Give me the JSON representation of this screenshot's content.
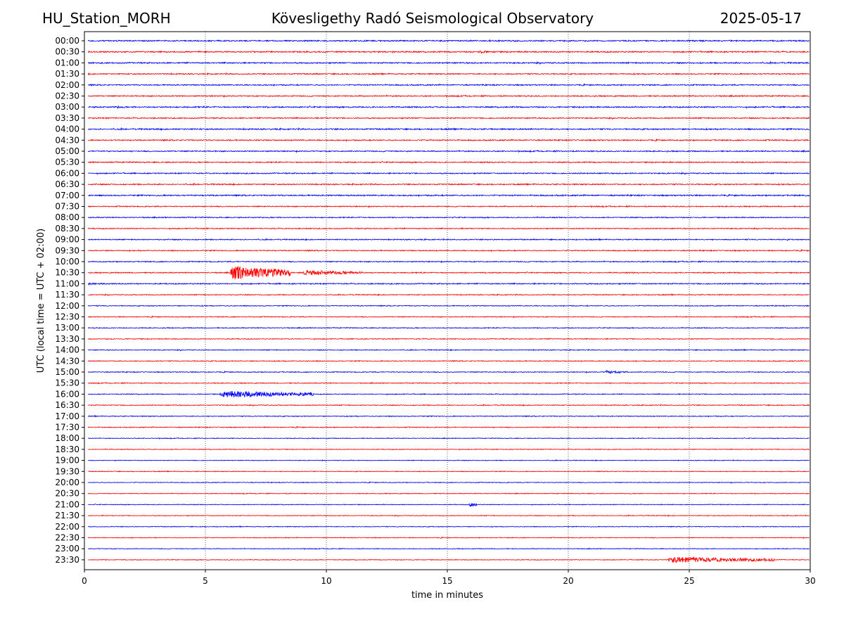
{
  "header": {
    "station": "HU_Station_MORH",
    "title": "Kövesligethy Radó Seismological Observatory",
    "date": "2025-05-17"
  },
  "chart_data": {
    "type": "line",
    "title": "Kövesligethy Radó Seismological Observatory",
    "xlabel": "time in minutes",
    "ylabel": "UTC (local time = UTC + 02:00)",
    "xlim": [
      0,
      30
    ],
    "xticks": [
      0,
      5,
      10,
      15,
      20,
      25,
      30
    ],
    "grid": "vertical dotted lines at each x tick",
    "colors": [
      "#0000ff",
      "#ff0000"
    ],
    "rows": [
      {
        "label": "00:00",
        "noise": 0.9,
        "events": []
      },
      {
        "label": "00:30",
        "noise": 0.9,
        "events": [
          {
            "start": 16.2,
            "end": 17.5,
            "amp": 2.0
          }
        ]
      },
      {
        "label": "01:00",
        "noise": 0.9,
        "events": []
      },
      {
        "label": "01:30",
        "noise": 0.8,
        "events": []
      },
      {
        "label": "02:00",
        "noise": 0.8,
        "events": []
      },
      {
        "label": "02:30",
        "noise": 0.8,
        "events": []
      },
      {
        "label": "03:00",
        "noise": 0.9,
        "events": [
          {
            "start": 1.3,
            "end": 1.8,
            "amp": 1.8
          }
        ]
      },
      {
        "label": "03:30",
        "noise": 0.8,
        "events": []
      },
      {
        "label": "04:00",
        "noise": 0.9,
        "events": []
      },
      {
        "label": "04:30",
        "noise": 0.8,
        "events": []
      },
      {
        "label": "05:00",
        "noise": 0.8,
        "events": []
      },
      {
        "label": "05:30",
        "noise": 0.8,
        "events": []
      },
      {
        "label": "06:00",
        "noise": 0.8,
        "events": []
      },
      {
        "label": "06:30",
        "noise": 0.8,
        "events": []
      },
      {
        "label": "07:00",
        "noise": 0.9,
        "events": []
      },
      {
        "label": "07:30",
        "noise": 0.7,
        "events": []
      },
      {
        "label": "08:00",
        "noise": 0.7,
        "events": []
      },
      {
        "label": "08:30",
        "noise": 0.7,
        "events": []
      },
      {
        "label": "09:00",
        "noise": 0.7,
        "events": []
      },
      {
        "label": "09:30",
        "noise": 0.7,
        "events": []
      },
      {
        "label": "10:00",
        "noise": 0.7,
        "events": []
      },
      {
        "label": "10:30",
        "noise": 0.7,
        "events": [
          {
            "start": 6.0,
            "end": 8.5,
            "amp": 11.0
          },
          {
            "start": 9.0,
            "end": 11.5,
            "amp": 4.0
          }
        ]
      },
      {
        "label": "11:00",
        "noise": 0.8,
        "events": [
          {
            "start": 0.1,
            "end": 1.2,
            "amp": 1.6
          }
        ]
      },
      {
        "label": "11:30",
        "noise": 0.6,
        "events": []
      },
      {
        "label": "12:00",
        "noise": 0.6,
        "events": []
      },
      {
        "label": "12:30",
        "noise": 0.6,
        "events": []
      },
      {
        "label": "13:00",
        "noise": 0.6,
        "events": []
      },
      {
        "label": "13:30",
        "noise": 0.6,
        "events": []
      },
      {
        "label": "14:00",
        "noise": 0.6,
        "events": []
      },
      {
        "label": "14:30",
        "noise": 0.6,
        "events": []
      },
      {
        "label": "15:00",
        "noise": 0.6,
        "events": [
          {
            "start": 21.5,
            "end": 22.5,
            "amp": 2.2
          }
        ]
      },
      {
        "label": "15:30",
        "noise": 0.6,
        "events": []
      },
      {
        "label": "16:00",
        "noise": 0.6,
        "events": [
          {
            "start": 5.6,
            "end": 9.5,
            "amp": 5.5
          }
        ]
      },
      {
        "label": "16:30",
        "noise": 0.6,
        "events": []
      },
      {
        "label": "17:00",
        "noise": 0.6,
        "events": []
      },
      {
        "label": "17:30",
        "noise": 0.6,
        "events": []
      },
      {
        "label": "18:00",
        "noise": 0.5,
        "events": []
      },
      {
        "label": "18:30",
        "noise": 0.5,
        "events": []
      },
      {
        "label": "19:00",
        "noise": 0.5,
        "events": []
      },
      {
        "label": "19:30",
        "noise": 0.5,
        "events": []
      },
      {
        "label": "20:00",
        "noise": 0.5,
        "events": []
      },
      {
        "label": "20:30",
        "noise": 0.5,
        "events": []
      },
      {
        "label": "21:00",
        "noise": 0.5,
        "events": [
          {
            "start": 15.9,
            "end": 16.2,
            "amp": 4.0
          }
        ]
      },
      {
        "label": "21:30",
        "noise": 0.5,
        "events": []
      },
      {
        "label": "22:00",
        "noise": 0.5,
        "events": []
      },
      {
        "label": "22:30",
        "noise": 0.5,
        "events": []
      },
      {
        "label": "23:00",
        "noise": 0.5,
        "events": []
      },
      {
        "label": "23:30",
        "noise": 0.5,
        "events": [
          {
            "start": 24.1,
            "end": 28.5,
            "amp": 4.5
          }
        ]
      }
    ]
  }
}
